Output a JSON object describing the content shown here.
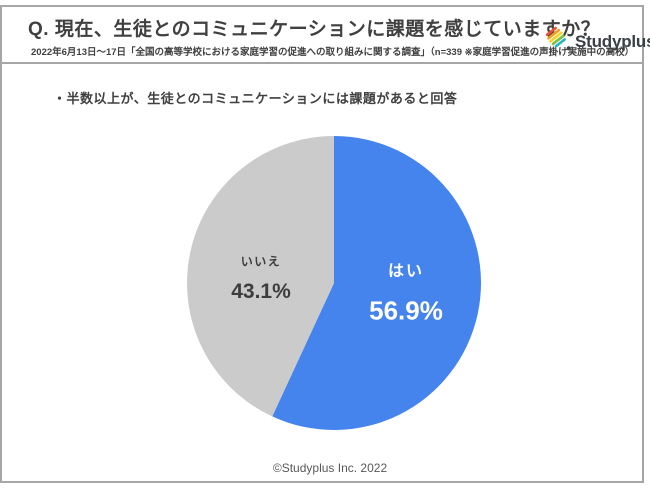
{
  "frame": {
    "border_color": "#a6a6a6",
    "background": "#ffffff"
  },
  "header": {
    "title": "Q. 現在、生徒とのコミュニケーションに課題を感じていますか？",
    "subtitle": "2022年6月13日～17日「全国の高等学校における家庭学習の促進への取り組みに関する調査」（n=339 ※家庭学習促進の声掛け実施中の高校）",
    "logo": {
      "wordmark": "Studyplus",
      "icon": "studyplus-pencil-icon",
      "stripe_colors": [
        "#e8503a",
        "#f59b1e",
        "#f5d327",
        "#7bc043",
        "#29b6c5"
      ],
      "dot_color": "#3a3f44",
      "text_color": "#3a3f44"
    }
  },
  "main": {
    "insight": "・半数以上が、生徒とのコミュニケーションには課題があると回答"
  },
  "chart_data": {
    "type": "pie",
    "title": "現在、生徒とのコミュニケーションに課題を感じていますか？",
    "categories": [
      "はい",
      "いいえ"
    ],
    "values": [
      56.9,
      43.1
    ],
    "value_labels": [
      "56.9%",
      "43.1%"
    ],
    "colors": [
      "#4584ec",
      "#cbcbcb"
    ],
    "label_colors": [
      "#ffffff",
      "#3d3d3d"
    ],
    "start_angle_deg": -90,
    "direction": "clockwise",
    "legend": "none",
    "n": 339
  },
  "footer": {
    "copyright": "©Studyplus Inc. 2022"
  }
}
